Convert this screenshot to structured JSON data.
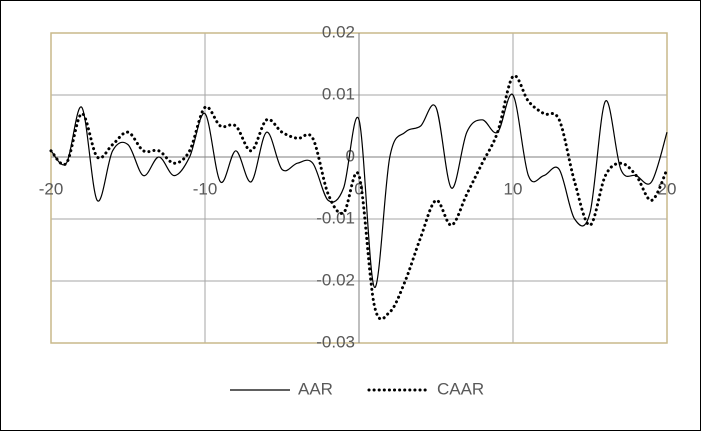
{
  "chart_data": {
    "type": "line",
    "x": [
      -20,
      -19,
      -18,
      -17,
      -16,
      -15,
      -14,
      -13,
      -12,
      -11,
      -10,
      -9,
      -8,
      -7,
      -6,
      -5,
      -4,
      -3,
      -2,
      -1,
      0,
      1,
      2,
      3,
      4,
      5,
      6,
      7,
      8,
      9,
      10,
      11,
      12,
      13,
      14,
      15,
      16,
      17,
      18,
      19,
      20
    ],
    "series": [
      {
        "name": "AAR",
        "color": "#000000",
        "style": "solid",
        "values": [
          0.001,
          -0.001,
          0.008,
          -0.007,
          0.001,
          0.002,
          -0.003,
          0.0,
          -0.003,
          0.0,
          0.007,
          -0.004,
          0.001,
          -0.004,
          0.004,
          -0.002,
          -0.001,
          -0.001,
          -0.007,
          -0.005,
          0.006,
          -0.021,
          0.0,
          0.004,
          0.005,
          0.008,
          -0.005,
          0.004,
          0.006,
          0.004,
          0.01,
          -0.003,
          -0.003,
          -0.002,
          -0.01,
          -0.009,
          0.009,
          -0.002,
          -0.003,
          -0.004,
          0.004
        ]
      },
      {
        "name": "CAAR",
        "color": "#000000",
        "style": "dotted",
        "values": [
          0.001,
          -0.001,
          0.007,
          0.0,
          0.002,
          0.004,
          0.001,
          0.001,
          -0.001,
          0.001,
          0.008,
          0.005,
          0.005,
          0.001,
          0.006,
          0.004,
          0.003,
          0.003,
          -0.006,
          -0.009,
          -0.003,
          -0.024,
          -0.025,
          -0.02,
          -0.013,
          -0.007,
          -0.011,
          -0.006,
          -0.001,
          0.004,
          0.013,
          0.009,
          0.007,
          0.006,
          -0.004,
          -0.011,
          -0.003,
          -0.001,
          -0.003,
          -0.007,
          -0.002
        ]
      }
    ],
    "xlim": [
      -20,
      20
    ],
    "xticks": [
      -20,
      -10,
      0,
      10,
      20
    ],
    "ylim": [
      -0.03,
      0.02
    ],
    "yticks": [
      -0.03,
      -0.02,
      -0.01,
      0,
      0.01,
      0.02
    ],
    "grid": true,
    "legend": "bottom"
  }
}
